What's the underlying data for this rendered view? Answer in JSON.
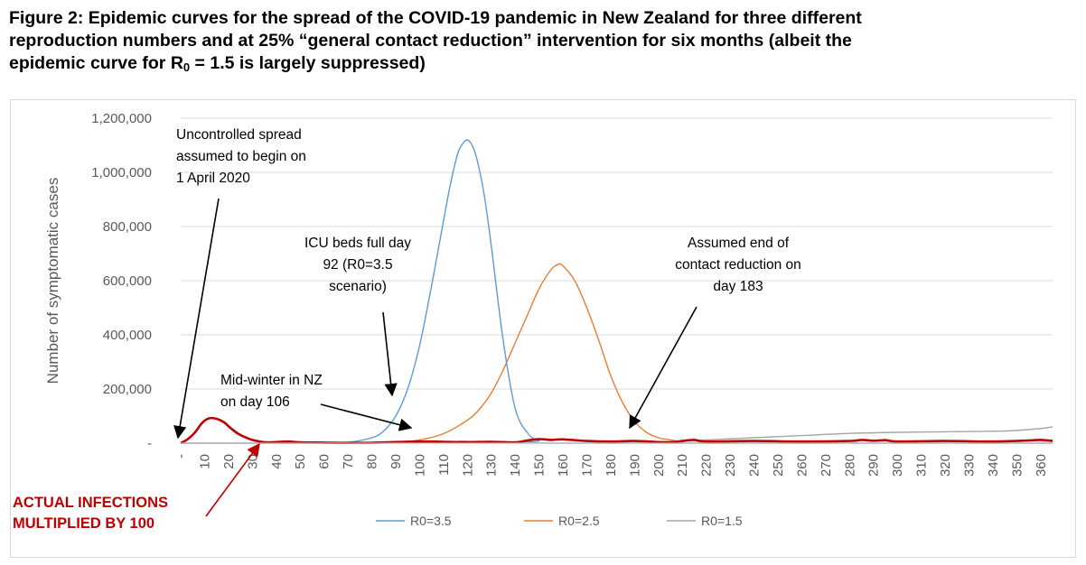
{
  "title": {
    "line1": "Figure 2: Epidemic curves for the spread of the COVID-19 pandemic in New Zealand for three different",
    "line2": "reproduction numbers and at 25% “general contact reduction” intervention for six months (albeit the",
    "line3_pre": "epidemic curve for R",
    "line3_sub": "0",
    "line3_post": " = 1.5 is largely suppressed)"
  },
  "chart_data": {
    "type": "line",
    "title": "",
    "xlabel": "",
    "ylabel": "Number of symptomatic cases",
    "xlim": [
      0,
      365
    ],
    "ylim": [
      0,
      1200000
    ],
    "x_ticks": [
      0,
      10,
      20,
      30,
      40,
      50,
      60,
      70,
      80,
      90,
      100,
      110,
      120,
      130,
      140,
      150,
      160,
      170,
      180,
      190,
      200,
      210,
      220,
      230,
      240,
      250,
      260,
      270,
      280,
      290,
      300,
      310,
      320,
      330,
      340,
      350,
      360
    ],
    "x_tick_labels": [
      "-",
      "10",
      "20",
      "30",
      "40",
      "50",
      "60",
      "70",
      "80",
      "90",
      "100",
      "110",
      "120",
      "130",
      "140",
      "150",
      "160",
      "170",
      "180",
      "190",
      "200",
      "210",
      "220",
      "230",
      "240",
      "250",
      "260",
      "270",
      "280",
      "290",
      "300",
      "310",
      "320",
      "330",
      "340",
      "350",
      "360"
    ],
    "y_ticks": [
      0,
      200000,
      400000,
      600000,
      800000,
      1000000,
      1200000
    ],
    "y_tick_labels": [
      "-",
      "200,000",
      "400,000",
      "600,000",
      "800,000",
      "1,000,000",
      "1,200,000"
    ],
    "grid": true,
    "legend_position": "bottom",
    "series": [
      {
        "name": "R0=3.5",
        "color": "#5b9bd5",
        "x": [
          0,
          60,
          70,
          80,
          85,
          90,
          95,
          100,
          105,
          110,
          113,
          116,
          118,
          120,
          122,
          124,
          127,
          130,
          135,
          140,
          145,
          150,
          160,
          365
        ],
        "y": [
          0,
          0,
          3000,
          20000,
          45000,
          100000,
          200000,
          360000,
          580000,
          820000,
          960000,
          1070000,
          1105000,
          1120000,
          1100000,
          1050000,
          920000,
          730000,
          380000,
          130000,
          40000,
          10000,
          0,
          0
        ]
      },
      {
        "name": "R0=2.5",
        "color": "#ed7d31",
        "x": [
          0,
          80,
          90,
          100,
          110,
          120,
          125,
          130,
          135,
          140,
          145,
          150,
          155,
          158,
          160,
          165,
          170,
          175,
          180,
          185,
          190,
          195,
          200,
          205,
          210,
          215,
          365
        ],
        "y": [
          0,
          0,
          3000,
          12000,
          35000,
          85000,
          125000,
          185000,
          270000,
          370000,
          470000,
          570000,
          640000,
          660000,
          655000,
          600000,
          500000,
          380000,
          250000,
          150000,
          80000,
          40000,
          20000,
          12000,
          5000,
          0,
          0
        ]
      },
      {
        "name": "R0=1.5",
        "color": "#a5a5a5",
        "x": [
          0,
          180,
          200,
          220,
          240,
          260,
          280,
          300,
          320,
          340,
          350,
          360,
          365
        ],
        "y": [
          0,
          0,
          5000,
          12000,
          20000,
          28000,
          36000,
          40000,
          42000,
          44000,
          47000,
          54000,
          60000
        ]
      },
      {
        "name": "Actual infections multiplied by 100",
        "color": "#c00000",
        "show_in_legend": false,
        "x": [
          0,
          3,
          6,
          9,
          12,
          15,
          18,
          21,
          24,
          27,
          30,
          33,
          36,
          40,
          45,
          50,
          60,
          70,
          80,
          90,
          100,
          110,
          120,
          130,
          140,
          145,
          150,
          155,
          160,
          170,
          180,
          190,
          200,
          205,
          210,
          215,
          220,
          240,
          260,
          280,
          285,
          290,
          295,
          300,
          320,
          340,
          355,
          360,
          365
        ],
        "y": [
          0,
          15000,
          40000,
          75000,
          92000,
          90000,
          78000,
          55000,
          35000,
          22000,
          12000,
          6000,
          3000,
          4000,
          6000,
          3000,
          2000,
          1000,
          1500,
          4000,
          6000,
          5000,
          4000,
          5000,
          3000,
          10000,
          15000,
          12000,
          14000,
          8000,
          6000,
          8000,
          4000,
          3000,
          8000,
          12000,
          6000,
          8000,
          6000,
          8000,
          12000,
          9000,
          11000,
          6000,
          8000,
          6000,
          10000,
          12000,
          8000
        ]
      }
    ],
    "annotations": [
      {
        "lines": [
          "Uncontrolled spread",
          "assumed to begin on",
          "1 April 2020"
        ],
        "anchor": [
          0,
          0
        ]
      },
      {
        "lines": [
          "ICU beds full day",
          "92 (R0=3.5",
          "scenario)"
        ],
        "anchor": [
          92,
          200000
        ]
      },
      {
        "lines": [
          "Mid-winter in NZ",
          "on day 106"
        ],
        "anchor": [
          106,
          20000
        ]
      },
      {
        "lines": [
          "Assumed end of",
          "contact reduction on",
          "day 183"
        ],
        "anchor": [
          183,
          20000
        ]
      },
      {
        "lines": [
          "ACTUAL INFECTIONS",
          "MULTIPLIED BY 100"
        ],
        "anchor": [
          33,
          0
        ],
        "emphasis": "red"
      }
    ]
  }
}
